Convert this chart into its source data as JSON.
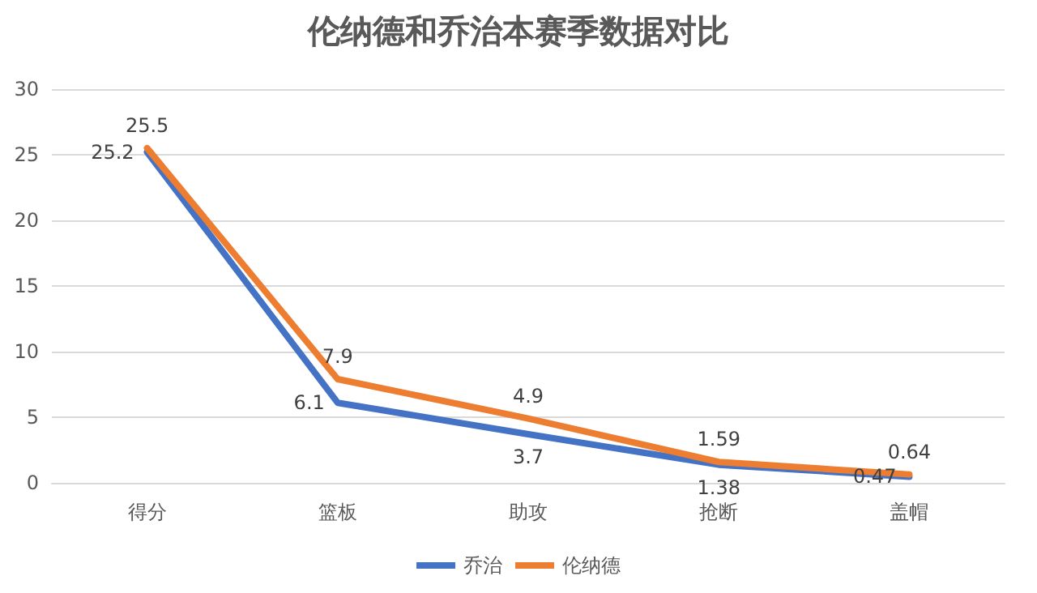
{
  "chart_data": {
    "type": "line",
    "title": "伦纳德和乔治本赛季数据对比",
    "categories": [
      "得分",
      "篮板",
      "助攻",
      "抢断",
      "盖帽"
    ],
    "series": [
      {
        "name": "乔治",
        "color": "#4472c4",
        "values": [
          25.2,
          6.1,
          3.7,
          1.38,
          0.47
        ]
      },
      {
        "name": "伦纳德",
        "color": "#ed7d31",
        "values": [
          25.5,
          7.9,
          4.9,
          1.59,
          0.64
        ]
      }
    ],
    "ylim": [
      0,
      30
    ],
    "yticks": [
      0,
      5,
      10,
      15,
      20,
      25,
      30
    ],
    "grid": "y",
    "legend": "bottom",
    "data_labels": true,
    "marker": "none"
  }
}
